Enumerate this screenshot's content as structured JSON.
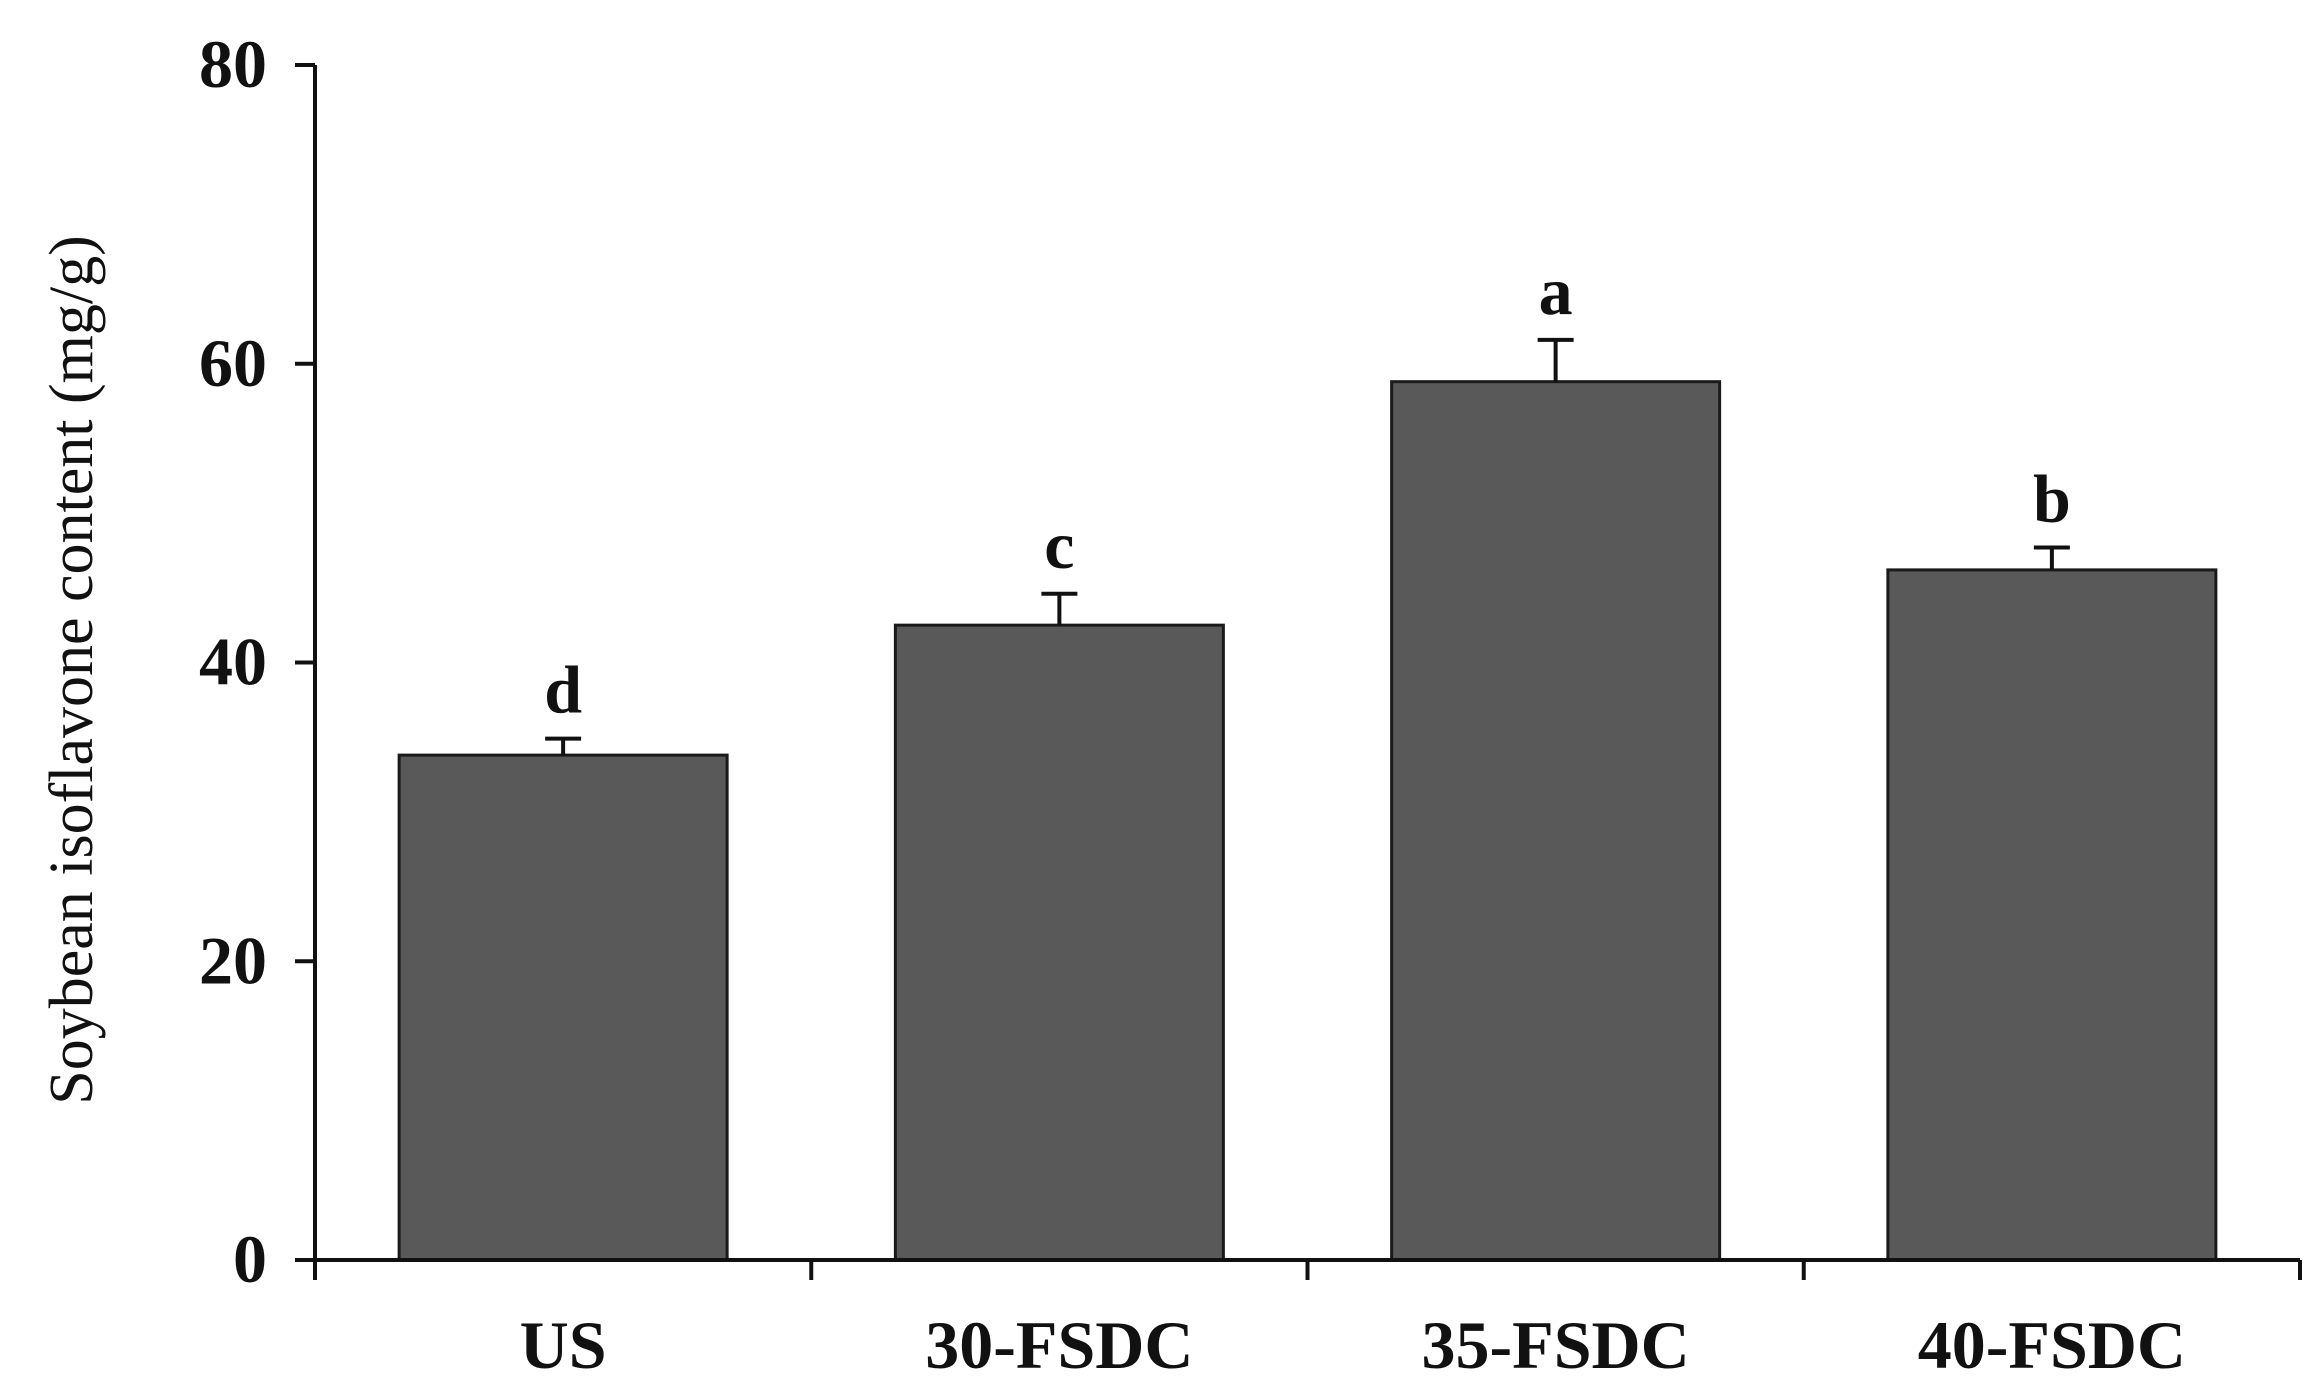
{
  "chart_data": {
    "type": "bar",
    "title": "",
    "xlabel": "",
    "ylabel": "Soybean isoflavone content (mg/g)",
    "categories": [
      "US",
      "30-FSDC",
      "35-FSDC",
      "40-FSDC"
    ],
    "values": [
      33.8,
      42.5,
      58.8,
      46.2
    ],
    "errors": [
      1.1,
      2.1,
      2.8,
      1.5
    ],
    "significance": [
      "d",
      "c",
      "a",
      "b"
    ],
    "ylim": [
      0,
      80
    ],
    "yticks": [
      0,
      20,
      40,
      60,
      80
    ],
    "ytick_labels": [
      "0",
      "20",
      "40",
      "60",
      "80"
    ],
    "grid": false,
    "legend": "none",
    "colors": {
      "bar": "#595959",
      "bar_edge": "#1a1a1a",
      "axis": "#111111"
    }
  }
}
